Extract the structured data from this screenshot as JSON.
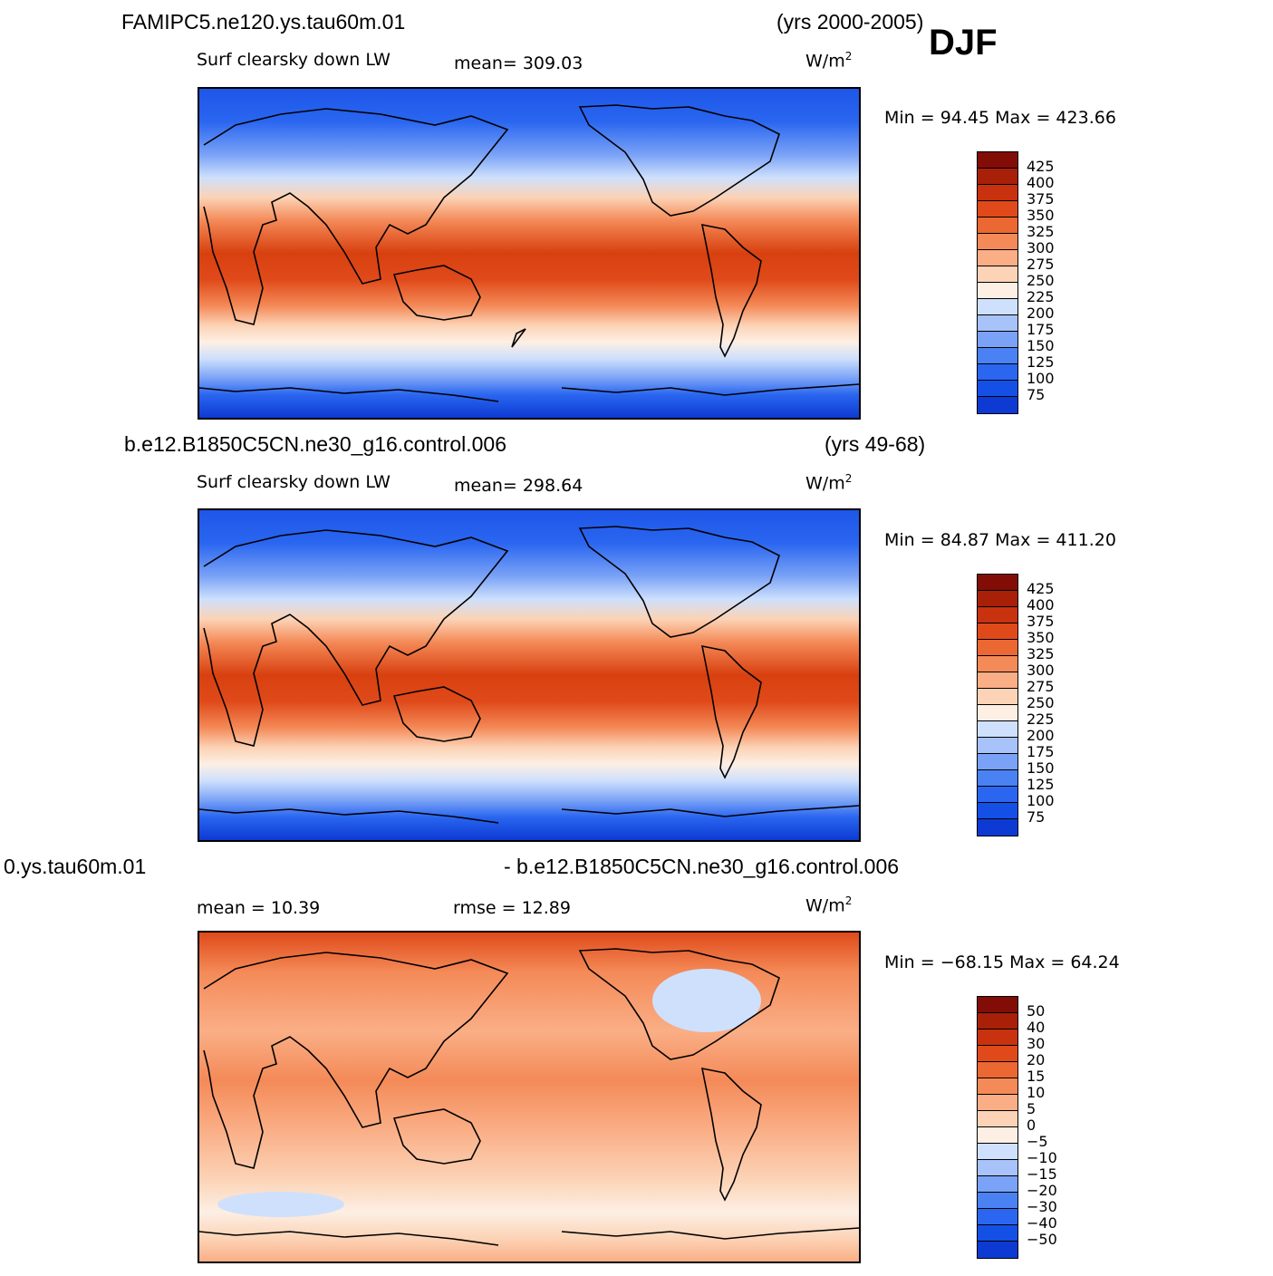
{
  "season": "DJF",
  "colors": {
    "abs_scale": [
      "#08088a",
      "#0a22b4",
      "#0d3ad2",
      "#1450e6",
      "#2a66f0",
      "#4a82f4",
      "#7aa2f6",
      "#a8c2fa",
      "#cee0fc",
      "#fdefe4",
      "#fcd3b6",
      "#faae86",
      "#f48a58",
      "#ec6832",
      "#e04a1a",
      "#c8320e",
      "#a82008",
      "#820c06"
    ],
    "diff_scale": [
      "#08088a",
      "#0a22b4",
      "#0d3ad2",
      "#1450e6",
      "#2a66f0",
      "#4a82f4",
      "#7aa2f6",
      "#a8c2fa",
      "#cee0fc",
      "#fdefe4",
      "#fcd3b6",
      "#faae86",
      "#f48a58",
      "#ec6832",
      "#e04a1a",
      "#c8320e",
      "#a82008",
      "#820c06"
    ],
    "coastline": "#000000"
  },
  "panels": [
    {
      "case_name": "FAMIPC5.ne120.ys.tau60m.01",
      "years": "(yrs 2000-2005)",
      "variable": "Surf clearsky down LW",
      "stat_text": "mean=  309.03",
      "stat2_text": "",
      "units": "W/m",
      "units_sup": "2",
      "minmax_text": "Min =   94.45 Max =  423.66",
      "colorbar_labels": [
        "425",
        "400",
        "375",
        "350",
        "325",
        "300",
        "275",
        "250",
        "225",
        "200",
        "175",
        "150",
        "125",
        "100",
        "75"
      ]
    },
    {
      "case_name": "b.e12.B1850C5CN.ne30_g16.control.006",
      "years": "(yrs 49-68)",
      "variable": "Surf clearsky down LW",
      "stat_text": "mean=  298.64",
      "stat2_text": "",
      "units": "W/m",
      "units_sup": "2",
      "minmax_text": "Min =   84.87 Max =  411.20",
      "colorbar_labels": [
        "425",
        "400",
        "375",
        "350",
        "325",
        "300",
        "275",
        "250",
        "225",
        "200",
        "175",
        "150",
        "125",
        "100",
        "75"
      ]
    },
    {
      "case_name": "0.ys.tau60m.01",
      "years": "- b.e12.B1850C5CN.ne30_g16.control.006",
      "variable": "mean =   10.39",
      "stat_text": "rmse =   12.89",
      "stat2_text": "",
      "units": "W/m",
      "units_sup": "2",
      "minmax_text": "Min = −68.15 Max =   64.24",
      "colorbar_labels": [
        "50",
        "40",
        "30",
        "20",
        "15",
        "10",
        "5",
        "0",
        "−5",
        "−10",
        "−15",
        "−20",
        "−30",
        "−40",
        "−50"
      ]
    }
  ]
}
